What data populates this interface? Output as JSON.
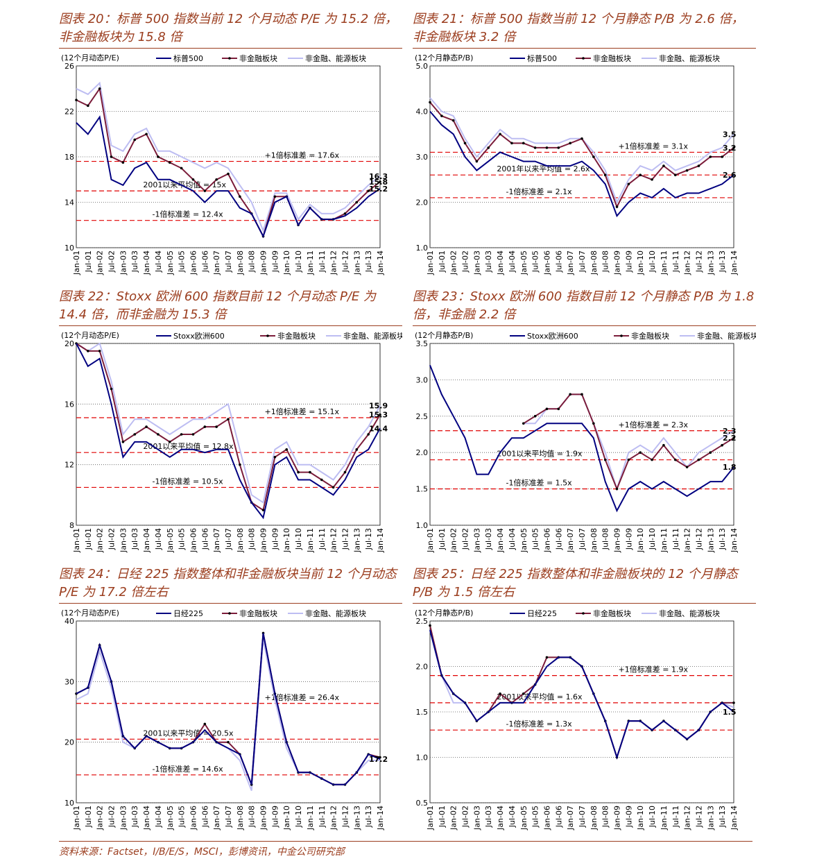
{
  "source": "资料来源：Factset，I/B/E/S，MSCI，彭博资讯，中金公司研究部",
  "chart_data": [
    {
      "type": "line",
      "title": "图表 20：标普 500 指数当前 12 个月动态 P/E 为 15.2 倍，非金融板块为 15.8 倍",
      "y_label": "(12个月动态P/E)",
      "categories": [
        "Jan-01",
        "Jul-01",
        "Jan-02",
        "Jul-02",
        "Jan-03",
        "Jul-03",
        "Jan-04",
        "Jul-04",
        "Jan-05",
        "Jul-05",
        "Jan-06",
        "Jul-06",
        "Jan-07",
        "Jul-07",
        "Jan-08",
        "Jul-08",
        "Jan-09",
        "Jul-09",
        "Jan-10",
        "Jul-10",
        "Jan-11",
        "Jul-11",
        "Jan-12",
        "Jul-12",
        "Jan-13",
        "Jul-13",
        "Jan-14"
      ],
      "series": [
        {
          "name": "标普500",
          "color": "#000080",
          "label_color": "#000080",
          "values": [
            21,
            20,
            21.5,
            16,
            15.5,
            17,
            17.5,
            16,
            16,
            15.5,
            15,
            14,
            15,
            15,
            13.5,
            13,
            11,
            14,
            14.5,
            12,
            13.5,
            12.5,
            12.5,
            12.8,
            13.5,
            14.5,
            15.2
          ]
        },
        {
          "name": "非金融板块",
          "color": "#7b1c3a",
          "markers": true,
          "label_color": "#8b2252",
          "values": [
            23,
            22.5,
            24,
            18,
            17.5,
            19.5,
            20,
            18,
            17.5,
            17,
            16,
            15,
            16,
            16.5,
            14.5,
            13,
            11,
            14.5,
            14.5,
            12,
            13.5,
            12.5,
            12.5,
            13,
            14,
            15,
            15.8
          ]
        },
        {
          "name": "非金融、能源板块",
          "color": "#bdbdf2",
          "label_color": "#000000",
          "values": [
            24,
            23.5,
            24.5,
            19,
            18.5,
            20,
            20.5,
            18.5,
            18.5,
            18,
            17.5,
            17,
            17.5,
            17,
            15.5,
            14,
            11.5,
            14.8,
            14.8,
            12.5,
            13.8,
            13,
            13,
            13.5,
            14.5,
            15.5,
            16.3
          ]
        }
      ],
      "ylim": [
        10,
        26
      ],
      "yticks": [
        10,
        14,
        18,
        22,
        26
      ],
      "grid": true,
      "reference_lines": [
        {
          "value": 17.6,
          "label": "+1倍标准差 = 17.6x"
        },
        {
          "value": 15,
          "label": "2001以来平均值 = 15x"
        },
        {
          "value": 12.4,
          "label": "-1倍标准差 = 12.4x"
        }
      ]
    },
    {
      "type": "line",
      "title": "图表 21：标普 500 指数当前 12 个月静态 P/B 为 2.6 倍，非金融板块 3.2 倍",
      "y_label": "(12个月静态P/B)",
      "categories": [
        "Jan-01",
        "Jul-01",
        "Jan-02",
        "Jul-02",
        "Jan-03",
        "Jul-03",
        "Jan-04",
        "Jul-04",
        "Jan-05",
        "Jul-05",
        "Jan-06",
        "Jul-06",
        "Jan-07",
        "Jul-07",
        "Jan-08",
        "Jul-08",
        "Jan-09",
        "Jul-09",
        "Jan-10",
        "Jul-10",
        "Jan-11",
        "Jul-11",
        "Jan-12",
        "Jul-12",
        "Jan-13",
        "Jul-13",
        "Jan-14"
      ],
      "series": [
        {
          "name": "标普500",
          "color": "#000080",
          "label_color": "#000080",
          "values": [
            4.0,
            3.7,
            3.5,
            3.0,
            2.7,
            2.9,
            3.1,
            3.0,
            2.9,
            2.9,
            2.8,
            2.8,
            2.8,
            2.9,
            2.7,
            2.4,
            1.7,
            2.0,
            2.2,
            2.1,
            2.3,
            2.1,
            2.2,
            2.2,
            2.3,
            2.4,
            2.6
          ]
        },
        {
          "name": "非金融板块",
          "color": "#7b1c3a",
          "markers": true,
          "label_color": "#8b2252",
          "values": [
            4.2,
            3.9,
            3.8,
            3.3,
            2.9,
            3.2,
            3.5,
            3.3,
            3.3,
            3.2,
            3.2,
            3.2,
            3.3,
            3.4,
            3.0,
            2.6,
            1.9,
            2.4,
            2.6,
            2.5,
            2.8,
            2.6,
            2.7,
            2.8,
            3.0,
            3.0,
            3.2
          ]
        },
        {
          "name": "非金融、能源板块",
          "color": "#bdbdf2",
          "label_color": "#000000",
          "values": [
            4.3,
            4.0,
            3.9,
            3.4,
            3.0,
            3.3,
            3.6,
            3.4,
            3.4,
            3.3,
            3.3,
            3.3,
            3.4,
            3.4,
            3.1,
            2.7,
            2.0,
            2.5,
            2.8,
            2.7,
            2.9,
            2.7,
            2.8,
            2.9,
            3.1,
            3.2,
            3.5
          ]
        }
      ],
      "ylim": [
        1,
        5
      ],
      "yticks": [
        {
          "value": 1,
          "label": "1.0"
        },
        {
          "value": 2,
          "label": "2.0"
        },
        {
          "value": 3,
          "label": "3.0"
        },
        {
          "value": 4,
          "label": "4.0"
        },
        {
          "value": 5,
          "label": "5.0"
        }
      ],
      "grid": true,
      "reference_lines": [
        {
          "value": 3.1,
          "label": "+1倍标准差 = 3.1x"
        },
        {
          "value": 2.6,
          "label": "2001年以来平均值 = 2.6x"
        },
        {
          "value": 2.1,
          "label": "-1倍标准差 = 2.1x"
        }
      ]
    },
    {
      "type": "line",
      "title": "图表 22：Stoxx 欧洲 600 指数目前 12 个月动态 P/E 为 14.4 倍，而非金融为 15.3 倍",
      "y_label": "(12个月动态P/E)",
      "categories": [
        "Jan-01",
        "Jul-01",
        "Jan-02",
        "Jul-02",
        "Jan-03",
        "Jul-03",
        "Jan-04",
        "Jul-04",
        "Jan-05",
        "Jul-05",
        "Jan-06",
        "Jul-06",
        "Jan-07",
        "Jul-07",
        "Jan-08",
        "Jul-08",
        "Jan-09",
        "Jul-09",
        "Jan-10",
        "Jul-10",
        "Jan-11",
        "Jul-11",
        "Jan-12",
        "Jul-12",
        "Jan-13",
        "Jul-13",
        "Jan-14"
      ],
      "series": [
        {
          "name": "Stoxx欧洲600",
          "color": "#000080",
          "label_color": "#000080",
          "values": [
            20,
            18.5,
            19,
            16,
            12.5,
            13.5,
            13.5,
            13,
            12.5,
            13,
            13,
            12.8,
            13,
            13,
            11,
            9.5,
            8.5,
            12,
            12.5,
            11,
            11,
            10.5,
            10,
            11,
            12.5,
            13,
            14.4
          ]
        },
        {
          "name": "非金融板块",
          "color": "#7b1c3a",
          "markers": true,
          "label_color": "#8b2252",
          "values": [
            20,
            19.5,
            19.5,
            17,
            13.5,
            14,
            14.5,
            14,
            13.5,
            14,
            14,
            14.5,
            14.5,
            15,
            12,
            9.5,
            9,
            12.5,
            13,
            11.5,
            11.5,
            11,
            10.5,
            11.5,
            13,
            14,
            15.3
          ]
        },
        {
          "name": "非金融、能源板块",
          "color": "#bdbdf2",
          "label_color": "#000000",
          "values": [
            20,
            19.5,
            20,
            17.5,
            14,
            15,
            15,
            14.5,
            14,
            14.5,
            15,
            15,
            15.5,
            16,
            13,
            10,
            9.5,
            13,
            13.5,
            12,
            12,
            11.5,
            11,
            12,
            13.5,
            14.5,
            15.9
          ]
        }
      ],
      "ylim": [
        8,
        20
      ],
      "yticks": [
        8,
        12,
        16,
        20
      ],
      "grid": true,
      "reference_lines": [
        {
          "value": 15.1,
          "label": "+1倍标准差 = 15.1x"
        },
        {
          "value": 12.8,
          "label": "2001以来平均值 = 12.8x"
        },
        {
          "value": 10.5,
          "label": "-1倍标准差 = 10.5x"
        }
      ]
    },
    {
      "type": "line",
      "title": "图表 23：Stoxx 欧洲 600 指数目前 12 个月静态 P/B 为 1.8 倍，非金融 2.2 倍",
      "y_label": "(12个月静态P/B)",
      "categories": [
        "Jan-01",
        "Jul-01",
        "Jan-02",
        "Jul-02",
        "Jan-03",
        "Jul-03",
        "Jan-04",
        "Jul-04",
        "Jan-05",
        "Jul-05",
        "Jan-06",
        "Jul-06",
        "Jan-07",
        "Jul-07",
        "Jan-08",
        "Jul-08",
        "Jan-09",
        "Jul-09",
        "Jan-10",
        "Jul-10",
        "Jan-11",
        "Jul-11",
        "Jan-12",
        "Jul-12",
        "Jan-13",
        "Jul-13",
        "Jan-14"
      ],
      "series": [
        {
          "name": "Stoxx欧洲600",
          "color": "#000080",
          "label_color": "#000080",
          "values": [
            3.2,
            2.8,
            2.5,
            2.2,
            1.7,
            1.7,
            2.0,
            2.2,
            2.2,
            2.3,
            2.4,
            2.4,
            2.4,
            2.4,
            2.2,
            1.6,
            1.2,
            1.5,
            1.6,
            1.5,
            1.6,
            1.5,
            1.4,
            1.5,
            1.6,
            1.6,
            1.8
          ]
        },
        {
          "name": "非金融板块",
          "color": "#7b1c3a",
          "markers": true,
          "label_color": "#8b2252",
          "values": [
            null,
            null,
            null,
            null,
            null,
            null,
            null,
            null,
            2.4,
            2.5,
            2.6,
            2.6,
            2.8,
            2.8,
            2.4,
            1.9,
            1.5,
            1.9,
            2.0,
            1.9,
            2.1,
            1.9,
            1.8,
            1.9,
            2.0,
            2.1,
            2.2
          ]
        },
        {
          "name": "非金融、能源板块",
          "color": "#bdbdf2",
          "label_color": "#000000",
          "values": [
            null,
            null,
            null,
            null,
            null,
            null,
            null,
            null,
            2.4,
            2.4,
            2.6,
            2.6,
            2.8,
            2.8,
            2.4,
            2.0,
            1.5,
            2.0,
            2.1,
            2.0,
            2.2,
            2.0,
            1.8,
            2.0,
            2.1,
            2.2,
            2.3
          ]
        }
      ],
      "ylim": [
        1,
        3.5
      ],
      "yticks": [
        {
          "value": 1,
          "label": "1.0"
        },
        1.5,
        {
          "value": 2,
          "label": "2.0"
        },
        2.5,
        {
          "value": 3,
          "label": "3.0"
        },
        3.5
      ],
      "grid": true,
      "reference_lines": [
        {
          "value": 2.3,
          "label": "+1倍标准差 = 2.3x"
        },
        {
          "value": 1.9,
          "label": "2001以来平均值 = 1.9x"
        },
        {
          "value": 1.5,
          "label": "-1倍标准差 = 1.5x"
        }
      ]
    },
    {
      "type": "line",
      "title": "图表 24：日经 225 指数整体和非金融板块当前 12 个月动态 P/E 为 17.2 倍左右",
      "y_label": "(12个月动态P/E)",
      "categories": [
        "Jan-01",
        "Jul-01",
        "Jan-02",
        "Jul-02",
        "Jan-03",
        "Jul-03",
        "Jan-04",
        "Jul-04",
        "Jan-05",
        "Jul-05",
        "Jan-06",
        "Jul-06",
        "Jan-07",
        "Jul-07",
        "Jan-08",
        "Jul-08",
        "Jan-09",
        "Jul-09",
        "Jan-10",
        "Jul-10",
        "Jan-11",
        "Jul-11",
        "Jan-12",
        "Jul-12",
        "Jan-13",
        "Jul-13",
        "Jan-14"
      ],
      "series": [
        {
          "name": "日经225",
          "color": "#000080",
          "label_color": "#000080",
          "values": [
            28,
            29,
            36,
            30,
            21,
            19,
            21,
            20,
            19,
            19,
            20,
            22,
            20,
            19,
            18,
            13,
            38,
            28,
            20,
            15,
            15,
            14,
            13,
            13,
            15,
            18,
            17.2
          ]
        },
        {
          "name": "非金融板块",
          "color": "#7b1c3a",
          "markers": true,
          "values": [
            28,
            29,
            36,
            30,
            21,
            19,
            21,
            20,
            19,
            19,
            20,
            23,
            20,
            20,
            18,
            13,
            38,
            28,
            20,
            15,
            15,
            14,
            13,
            13,
            15,
            18,
            17.5
          ]
        },
        {
          "name": "非金融、能源板块",
          "color": "#bdbdf2",
          "values": [
            27,
            28,
            35,
            29,
            20,
            19,
            21,
            20,
            19,
            19,
            20,
            22,
            20,
            19,
            17,
            12,
            37,
            27,
            19,
            15,
            15,
            14,
            13,
            13,
            15,
            17,
            17
          ]
        }
      ],
      "ylim": [
        10,
        40
      ],
      "yticks": [
        10,
        20,
        30,
        40
      ],
      "grid": true,
      "reference_lines": [
        {
          "value": 26.4,
          "label": "+1倍标准差 = 26.4x"
        },
        {
          "value": 20.5,
          "label": "2001以来平均值 = 20.5x"
        },
        {
          "value": 14.6,
          "label": "-1倍标准差 = 14.6x"
        }
      ]
    },
    {
      "type": "line",
      "title": "图表 25：日经 225 指数整体和非金融板块的 12 个月静态 P/B 为 1.5 倍左右",
      "y_label": "(12个月静态P/B)",
      "categories": [
        "Jan-01",
        "Jul-01",
        "Jan-02",
        "Jul-02",
        "Jan-03",
        "Jul-03",
        "Jan-04",
        "Jul-04",
        "Jan-05",
        "Jul-05",
        "Jan-06",
        "Jul-06",
        "Jan-07",
        "Jul-07",
        "Jan-08",
        "Jul-08",
        "Jan-09",
        "Jul-09",
        "Jan-10",
        "Jul-10",
        "Jan-11",
        "Jul-11",
        "Jan-12",
        "Jul-12",
        "Jan-13",
        "Jul-13",
        "Jan-14"
      ],
      "series": [
        {
          "name": "日经225",
          "color": "#000080",
          "label_color": "#000080",
          "values": [
            2.4,
            1.9,
            1.7,
            1.6,
            1.4,
            1.5,
            1.6,
            1.6,
            1.6,
            1.8,
            2.0,
            2.1,
            2.1,
            2.0,
            1.7,
            1.4,
            1.0,
            1.4,
            1.4,
            1.3,
            1.4,
            1.3,
            1.2,
            1.3,
            1.5,
            1.6,
            1.5
          ]
        },
        {
          "name": "非金融板块",
          "color": "#7b1c3a",
          "markers": true,
          "values": [
            2.45,
            1.9,
            1.7,
            1.6,
            1.4,
            1.5,
            1.7,
            1.6,
            1.7,
            1.8,
            2.1,
            2.1,
            2.1,
            2.0,
            1.7,
            1.4,
            1.0,
            1.4,
            1.4,
            1.3,
            1.4,
            1.3,
            1.2,
            1.3,
            1.5,
            1.6,
            1.6
          ]
        },
        {
          "name": "非金融、能源板块",
          "color": "#bdbdf2",
          "values": [
            2.4,
            1.9,
            1.6,
            1.6,
            1.4,
            1.5,
            1.6,
            1.6,
            1.6,
            1.8,
            2.0,
            2.1,
            2.1,
            2.0,
            1.7,
            1.4,
            1.0,
            1.4,
            1.4,
            1.3,
            1.4,
            1.3,
            1.2,
            1.3,
            1.5,
            1.6,
            1.55
          ]
        }
      ],
      "ylim": [
        0.5,
        2.5
      ],
      "yticks": [
        0.5,
        {
          "value": 1,
          "label": "1.0"
        },
        1.5,
        {
          "value": 2,
          "label": "2.0"
        },
        2.5
      ],
      "grid": true,
      "reference_lines": [
        {
          "value": 1.9,
          "label": "+1倍标准差 = 1.9x"
        },
        {
          "value": 1.6,
          "label": "2001以来平均值 = 1.6x"
        },
        {
          "value": 1.3,
          "label": "-1倍标准差 = 1.3x"
        }
      ]
    }
  ]
}
